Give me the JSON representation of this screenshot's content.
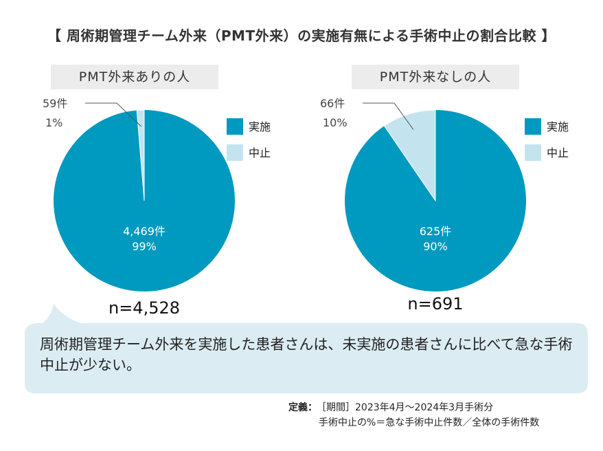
{
  "title": "【 周術期管理チーム外来（PMT外来）の実施有無による手術中止の割合比較 】",
  "colors": {
    "implemented": "#0099bf",
    "cancelled": "#c3e4ee",
    "label_bg": "#ececec",
    "bubble_bg": "#dcecf3"
  },
  "legend": {
    "implemented": "実施",
    "cancelled": "中止"
  },
  "chart_data": [
    {
      "type": "pie",
      "title": "PMT外来ありの人",
      "n_label": "n=4,528",
      "slices": [
        {
          "name": "実施",
          "value": 4469,
          "count_label": "4,469件",
          "pct_label": "99%"
        },
        {
          "name": "中止",
          "value": 59,
          "count_label": "59件",
          "pct_label": "1%"
        }
      ]
    },
    {
      "type": "pie",
      "title": "PMT外来なしの人",
      "n_label": "n=691",
      "slices": [
        {
          "name": "実施",
          "value": 625,
          "count_label": "625件",
          "pct_label": "90%"
        },
        {
          "name": "中止",
          "value": 66,
          "count_label": "66件",
          "pct_label": "10%"
        }
      ]
    }
  ],
  "callout": "周術期管理チーム外来を実施した患者さんは、未実施の患者さんに比べて急な手術中止が少ない。",
  "definition": {
    "key": "定義：",
    "line1": "［期間］2023年4月〜2024年3月手術分",
    "line2": "手術中止の%＝急な手術中止件数／全体の手術件数"
  }
}
